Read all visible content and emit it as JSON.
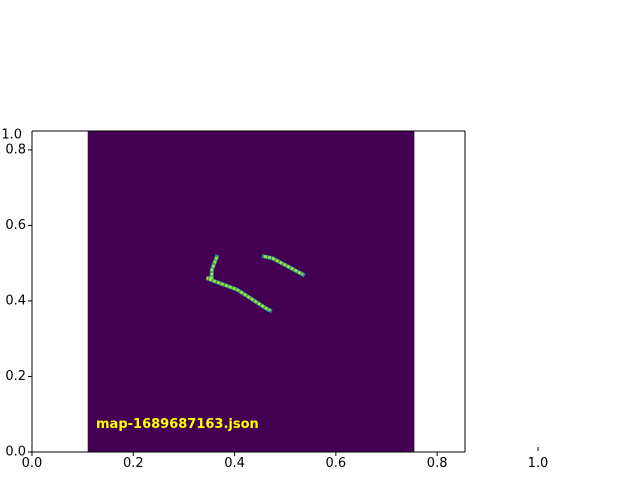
{
  "figure": {
    "background": "#ffffff",
    "map_caption": "map-1689687163.json"
  },
  "main_axes": {
    "xlim": [
      0.0,
      0.855
    ],
    "ylim": [
      0.0,
      0.85
    ],
    "x_ticks": [
      {
        "value": 0.0,
        "label": "0.0"
      },
      {
        "value": 0.2,
        "label": "0.2"
      },
      {
        "value": 0.4,
        "label": "0.4"
      },
      {
        "value": 0.6,
        "label": "0.6"
      },
      {
        "value": 0.8,
        "label": "0.8"
      }
    ],
    "y_ticks": [
      {
        "value": 0.0,
        "label": "0.0"
      },
      {
        "value": 0.2,
        "label": "0.2"
      },
      {
        "value": 0.4,
        "label": "0.4"
      },
      {
        "value": 0.6,
        "label": "0.6"
      },
      {
        "value": 0.8,
        "label": "0.8"
      }
    ]
  },
  "overlay_axes": {
    "top_tick_label": "1.0",
    "right_tick_label": "1.0"
  },
  "map_image": {
    "extent_x": [
      0.11,
      0.755
    ],
    "extent_y": [
      0.0,
      0.85
    ],
    "background_color": "#440154",
    "path_color": "#b5de2b",
    "path_edge_color": "#21918c",
    "paths": [
      [
        [
          0.365,
          0.517
        ],
        [
          0.355,
          0.482
        ],
        [
          0.355,
          0.462
        ],
        [
          0.345,
          0.46
        ],
        [
          0.405,
          0.43
        ],
        [
          0.465,
          0.378
        ],
        [
          0.47,
          0.375
        ]
      ],
      [
        [
          0.458,
          0.518
        ],
        [
          0.475,
          0.513
        ],
        [
          0.535,
          0.47
        ]
      ]
    ]
  },
  "colors": {
    "axis_line": "#000000",
    "caption": "#ffff00"
  }
}
